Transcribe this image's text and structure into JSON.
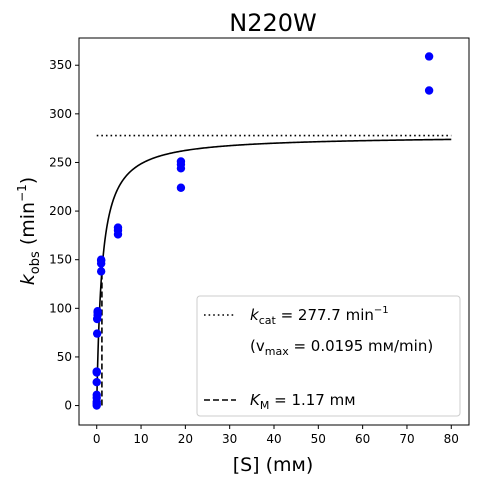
{
  "chart_data": {
    "type": "scatter",
    "title": "N220W",
    "xlabel": {
      "main": "[S] (",
      "unit": "mм",
      "tail": ")"
    },
    "ylabel": {
      "k": "k",
      "sub": "obs",
      "unit_open": " (min",
      "sup": "−1",
      "unit_close": ")"
    },
    "xlim": [
      -4,
      84
    ],
    "ylim": [
      -20,
      378
    ],
    "x_ticks": [
      0,
      10,
      20,
      30,
      40,
      50,
      60,
      70,
      80
    ],
    "y_ticks": [
      0,
      50,
      100,
      150,
      200,
      250,
      300,
      350
    ],
    "grid": false,
    "legend_position": "lower-right",
    "series": [
      {
        "kind": "points",
        "color": "#0000ff",
        "marker": "circle",
        "x": [
          0,
          0,
          0,
          0,
          0,
          0,
          0,
          0,
          0.1,
          0.1,
          0.2,
          0.2,
          0.2,
          1,
          1,
          1,
          1,
          4.8,
          4.8,
          4.8,
          19,
          19,
          19,
          19,
          75,
          75
        ],
        "y": [
          0,
          2,
          4,
          8,
          11,
          24,
          34,
          35,
          74,
          89,
          93,
          96,
          97,
          138,
          146,
          149,
          150,
          176,
          180,
          183,
          224,
          244,
          248,
          251,
          324,
          359
        ]
      },
      {
        "kind": "curve",
        "color": "#000000",
        "model": "michaelis-menten",
        "Vmax": 277.7,
        "Km": 1.17,
        "x_range": [
          0,
          80
        ]
      },
      {
        "kind": "hline",
        "style": "dotted",
        "color": "#000000",
        "y": 277.7,
        "x_range": [
          0,
          80
        ]
      },
      {
        "kind": "vline",
        "style": "dashed",
        "color": "#000000",
        "x": 1.17,
        "y_range": [
          0,
          138.85
        ]
      }
    ],
    "legend": {
      "entries": [
        {
          "style": "dotted",
          "pre": "k",
          "sub": "cat",
          "mid": " = 277.7 min",
          "sup": "−1"
        },
        {
          "style": "none",
          "text": "(v",
          "sub": "max",
          "tail": " = 0.0195 mм/min)"
        },
        {
          "style": "dashed",
          "pre": "K",
          "sub": "M",
          "mid": " = 1.17 mм"
        }
      ]
    }
  }
}
